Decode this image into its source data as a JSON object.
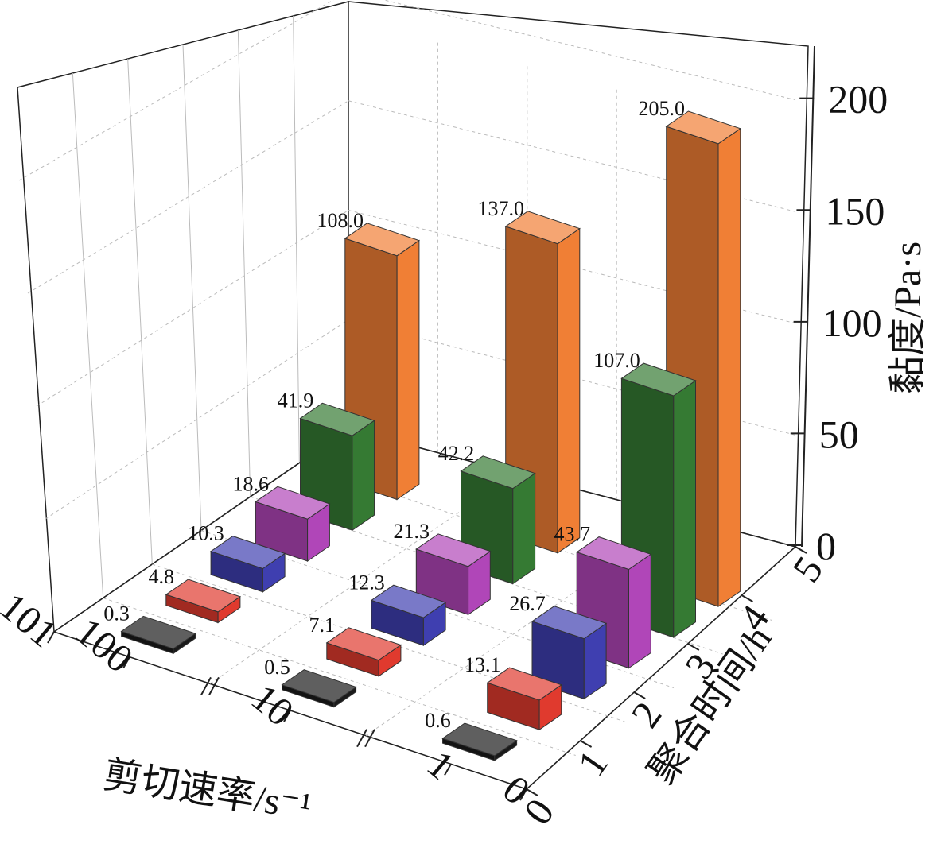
{
  "chart_data": {
    "type": "bar3d",
    "ylabel": "黏度/Pa·s",
    "xlabel": "剪切速率/s⁻¹",
    "zlabel": "聚合时间/h",
    "zlim": [
      0,
      200
    ],
    "z_ticks": [
      "0",
      "50",
      "100",
      "150",
      "200"
    ],
    "x_ticks": [
      "101",
      "100",
      "10",
      "1",
      "0"
    ],
    "y_ticks": [
      "0",
      "1",
      "2",
      "3",
      "4",
      "5"
    ],
    "groups": [
      "100",
      "10",
      "1"
    ],
    "series": [
      {
        "time": "0",
        "color": "#1a1a1a",
        "values": [
          0.3,
          0.5,
          0.6
        ]
      },
      {
        "time": "1",
        "color": "#e03a2e",
        "values": [
          4.8,
          7.1,
          13.1
        ]
      },
      {
        "time": "2",
        "color": "#3f3fb0",
        "values": [
          10.3,
          12.3,
          26.7
        ]
      },
      {
        "time": "3",
        "color": "#b046b8",
        "values": [
          18.6,
          21.3,
          43.7
        ]
      },
      {
        "time": "4",
        "color": "#357a33",
        "values": [
          41.9,
          42.2,
          107.0
        ]
      },
      {
        "time": "5",
        "color": "#f07f35",
        "values": [
          108.0,
          137.0,
          205.0
        ]
      }
    ],
    "value_labels": [
      [
        "0.3",
        "0.5",
        "0.6"
      ],
      [
        "4.8",
        "7.1",
        "13.1"
      ],
      [
        "10.3",
        "12.3",
        "26.7"
      ],
      [
        "18.6",
        "21.3",
        "43.7"
      ],
      [
        "41.9",
        "42.2",
        "107.0"
      ],
      [
        "108.0",
        "137.0",
        "205.0"
      ]
    ]
  }
}
